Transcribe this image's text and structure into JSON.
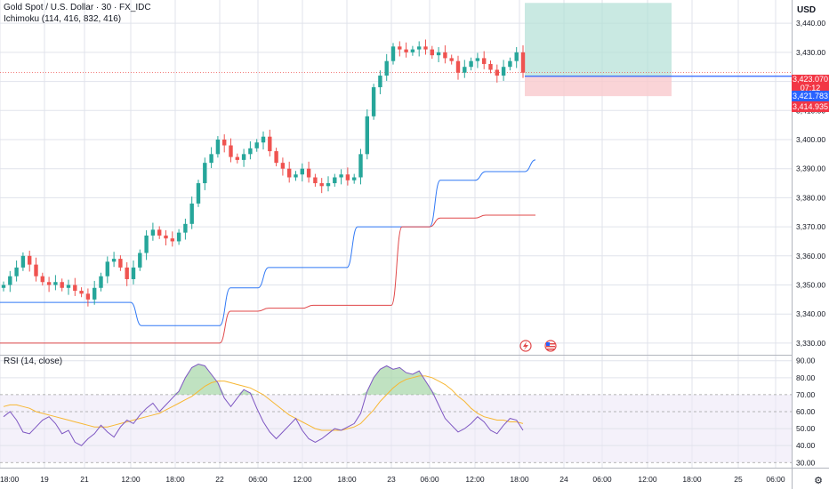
{
  "legend": {
    "symbol": "Gold Spot / U.S. Dollar · 30 · FX_IDC",
    "ichimoku": "Ichimoku (114, 416, 832, 416)",
    "rsi": "RSI (14, close)"
  },
  "price_axis": {
    "currency": "USD",
    "labels": [
      "3,440.00",
      "3,430.00",
      "3,420.00",
      "3,410.00",
      "3,400.00",
      "3,390.00",
      "3,380.00",
      "3,370.00",
      "3,360.00",
      "3,350.00",
      "3,340.00",
      "3,330.00"
    ],
    "tags": {
      "close": "3,423.070",
      "countdown": "07:12",
      "entry": "3,421.783",
      "stop": "3,414.935"
    }
  },
  "rsi_axis": {
    "labels": [
      "90.00",
      "80.00",
      "70.00",
      "60.00",
      "50.00",
      "40.00",
      "30.00"
    ]
  },
  "time_axis": {
    "labels": [
      "18:00",
      "19",
      "21",
      "12:00",
      "18:00",
      "22",
      "06:00",
      "12:00",
      "18:00",
      "23",
      "06:00",
      "12:00",
      "18:00",
      "24",
      "06:00",
      "12:00",
      "18:00",
      "25",
      "06:00"
    ]
  },
  "colors": {
    "up": "#26a69a",
    "down": "#ef5350",
    "base_line": "#3179f5",
    "lead_line": "#e0484a",
    "rsi_line": "#7e57c2",
    "rsi_ma": "#f7b733",
    "target_zone": "#b2e0d6",
    "stop_zone": "#f9c9cd",
    "entry_line": "#2962ff"
  },
  "chart_data": [
    {
      "type": "candlestick",
      "ylim": [
        3326,
        3448
      ],
      "x_ticks": [
        "18:00",
        "19",
        "21",
        "12:00",
        "18:00",
        "22",
        "06:00",
        "12:00",
        "18:00",
        "23",
        "06:00",
        "12:00",
        "18:00",
        "24",
        "06:00",
        "12:00",
        "18:00",
        "25",
        "06:00"
      ],
      "close_path": [
        3350,
        3353,
        3356,
        3360,
        3357,
        3353,
        3351,
        3350,
        3351,
        3349,
        3350,
        3348,
        3347,
        3345,
        3349,
        3353,
        3358,
        3359,
        3356,
        3352,
        3356,
        3361,
        3367,
        3369,
        3367,
        3366,
        3365,
        3368,
        3371,
        3378,
        3385,
        3392,
        3395,
        3400,
        3398,
        3394,
        3393,
        3395,
        3397,
        3399,
        3401,
        3396,
        3392,
        3390,
        3387,
        3388,
        3390,
        3387,
        3385,
        3384,
        3385,
        3387,
        3388,
        3386,
        3387,
        3395,
        3408,
        3418,
        3422,
        3427,
        3432,
        3431,
        3430,
        3431,
        3432,
        3431,
        3429,
        3430,
        3428,
        3427,
        3423,
        3425,
        3427,
        3428,
        3426,
        3424,
        3422,
        3425,
        3427,
        3430,
        3423
      ],
      "last_close": 3423.07,
      "ichimoku_base_line": {
        "x": [
          "18:00",
          "21",
          "21 12:00",
          "22",
          "22 06:00",
          "22 12:00",
          "22 18:00",
          "23",
          "23 06:00",
          "23 12:00",
          "23 18:00"
        ],
        "y": [
          3344,
          3344,
          3336,
          3349,
          3356,
          3356,
          3370,
          3370,
          3386,
          3389,
          3393
        ]
      },
      "ichimoku_lead_line": {
        "x": [
          "18:00",
          "21",
          "21 18:00",
          "22",
          "22 06:00",
          "22 12:00",
          "22 18:00",
          "23",
          "23 06:00",
          "23 12:00",
          "23 18:00"
        ],
        "y": [
          3330,
          3330,
          3330,
          3341,
          3342,
          3343,
          3343,
          3370,
          3373,
          3374,
          3374
        ]
      },
      "position": {
        "entry": 3421.783,
        "stop": 3414.935,
        "target": 3447
      }
    },
    {
      "type": "line",
      "title": "RSI (14, close)",
      "ylim": [
        27,
        93
      ],
      "bands": {
        "upper": 70,
        "middle": 60,
        "lower": 30
      },
      "rsi": [
        57,
        60,
        55,
        48,
        47,
        51,
        55,
        57,
        53,
        47,
        49,
        42,
        40,
        44,
        47,
        52,
        48,
        45,
        51,
        55,
        53,
        58,
        62,
        65,
        60,
        64,
        68,
        72,
        80,
        86,
        88,
        87,
        82,
        77,
        68,
        63,
        68,
        73,
        71,
        62,
        54,
        48,
        44,
        48,
        52,
        56,
        49,
        44,
        42,
        44,
        47,
        50,
        49,
        51,
        53,
        59,
        72,
        80,
        85,
        87,
        85,
        86,
        83,
        82,
        84,
        78,
        72,
        64,
        56,
        52,
        48,
        50,
        53,
        57,
        54,
        49,
        47,
        52,
        56,
        55,
        49
      ],
      "rsi_ma": [
        63,
        64,
        64,
        63,
        62,
        60,
        59,
        58,
        57,
        56,
        55,
        54,
        53,
        52,
        51,
        51,
        51,
        52,
        53,
        54,
        55,
        56,
        57,
        58,
        59,
        61,
        63,
        65,
        67,
        69,
        72,
        75,
        77,
        78,
        78,
        77,
        76,
        75,
        74,
        72,
        70,
        67,
        64,
        61,
        58,
        56,
        54,
        52,
        50,
        49,
        49,
        49,
        49,
        50,
        51,
        53,
        57,
        61,
        66,
        70,
        74,
        77,
        79,
        80,
        81,
        81,
        80,
        78,
        76,
        73,
        69,
        66,
        62,
        59,
        57,
        56,
        55,
        55,
        54,
        54,
        53
      ]
    }
  ]
}
